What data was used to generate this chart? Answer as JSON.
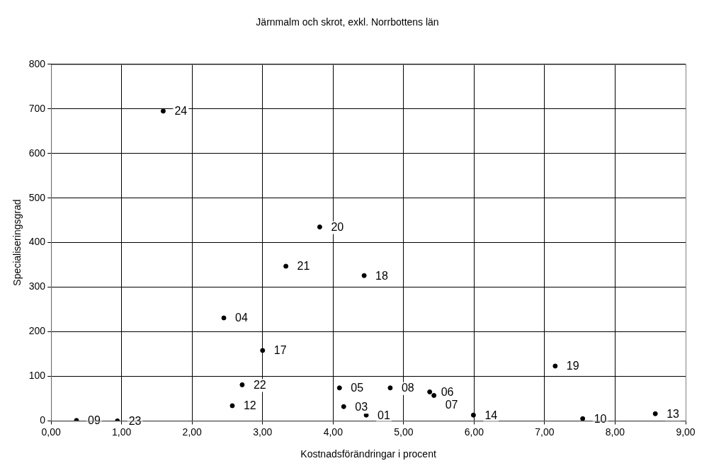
{
  "chart_data": {
    "type": "scatter",
    "title": "Järnmalm och skrot, exkl. Norrbottens län",
    "xlabel": "Kostnadsförändringar i procent",
    "ylabel": "Specialiseringsgrad",
    "x": [
      1.59,
      3.81,
      3.33,
      4.44,
      2.45,
      3.0,
      7.15,
      2.71,
      4.09,
      4.81,
      5.37,
      5.43,
      2.57,
      4.15,
      4.47,
      5.99,
      7.54,
      8.57,
      0.36,
      0.94
    ],
    "series": [
      {
        "color": "#000000",
        "values": [
          695,
          435,
          347,
          326,
          231,
          158,
          123,
          81,
          74,
          74,
          65,
          57,
          34,
          32,
          13,
          13,
          5,
          16,
          1,
          0
        ]
      }
    ],
    "annotations": [
      {
        "text": "24",
        "x": 1.59,
        "y": 695
      },
      {
        "text": "20",
        "x": 3.81,
        "y": 435
      },
      {
        "text": "21",
        "x": 3.33,
        "y": 347
      },
      {
        "text": "18",
        "x": 4.44,
        "y": 326
      },
      {
        "text": "04",
        "x": 2.45,
        "y": 231
      },
      {
        "text": "17",
        "x": 3.0,
        "y": 158
      },
      {
        "text": "19",
        "x": 7.15,
        "y": 123
      },
      {
        "text": "22",
        "x": 2.71,
        "y": 81
      },
      {
        "text": "05",
        "x": 4.09,
        "y": 74
      },
      {
        "text": "08",
        "x": 4.81,
        "y": 74
      },
      {
        "text": "06",
        "x": 5.37,
        "y": 65
      },
      {
        "text": "07",
        "x": 5.43,
        "y": 57
      },
      {
        "text": "12",
        "x": 2.57,
        "y": 34
      },
      {
        "text": "03",
        "x": 4.15,
        "y": 32
      },
      {
        "text": "01",
        "x": 4.47,
        "y": 13
      },
      {
        "text": "14",
        "x": 5.99,
        "y": 13
      },
      {
        "text": "10",
        "x": 7.54,
        "y": 5
      },
      {
        "text": "13",
        "x": 8.57,
        "y": 16
      },
      {
        "text": "09",
        "x": 0.36,
        "y": 1
      },
      {
        "text": "23",
        "x": 0.94,
        "y": 0
      }
    ],
    "xlim": [
      0,
      9
    ],
    "xticks": [
      {
        "value": 0,
        "label": "0,00"
      },
      {
        "value": 1,
        "label": "1,00"
      },
      {
        "value": 2,
        "label": "2,00"
      },
      {
        "value": 3,
        "label": "3,00"
      },
      {
        "value": 4,
        "label": "4,00"
      },
      {
        "value": 5,
        "label": "5,00"
      },
      {
        "value": 6,
        "label": "6,00"
      },
      {
        "value": 7,
        "label": "7,00"
      },
      {
        "value": 8,
        "label": "8,00"
      },
      {
        "value": 9,
        "label": "9,00"
      }
    ],
    "ylim": [
      0,
      800
    ],
    "yticks": [
      0,
      100,
      200,
      300,
      400,
      500,
      600,
      700,
      800
    ],
    "grid": true,
    "legend": false,
    "marker": "circle"
  }
}
